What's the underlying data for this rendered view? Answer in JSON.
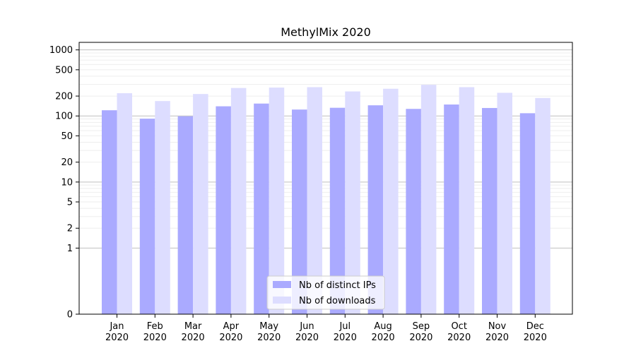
{
  "chart_data": {
    "type": "bar",
    "title": "MethylMix 2020",
    "categories": [
      "Jan\n2020",
      "Feb\n2020",
      "Mar\n2020",
      "Apr\n2020",
      "May\n2020",
      "Jun\n2020",
      "Jul\n2020",
      "Aug\n2020",
      "Sep\n2020",
      "Oct\n2020",
      "Nov\n2020",
      "Dec\n2020"
    ],
    "series": [
      {
        "name": "Nb of distinct IPs",
        "color": "#aaaaff",
        "values": [
          122,
          91,
          99,
          140,
          154,
          125,
          133,
          145,
          128,
          149,
          132,
          110
        ]
      },
      {
        "name": "Nb of downloads",
        "color": "#ddddff",
        "values": [
          221,
          168,
          215,
          265,
          269,
          273,
          235,
          258,
          296,
          273,
          224,
          187
        ]
      }
    ],
    "yscale": "symlog",
    "yticks": [
      0,
      1,
      2,
      5,
      10,
      20,
      50,
      100,
      200,
      500,
      1000
    ],
    "ylim": [
      0,
      1300
    ],
    "grid": true,
    "legend_position": "bottom-center"
  }
}
